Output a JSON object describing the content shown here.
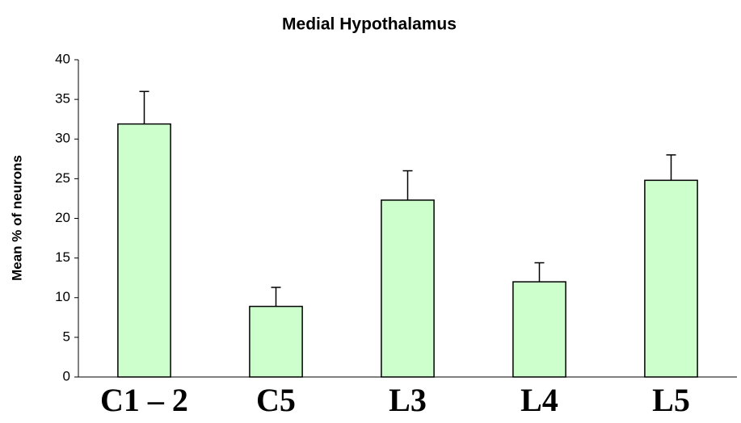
{
  "chart_data": {
    "type": "bar",
    "title": "Medial Hypothalamus",
    "y_label": "Mean % of neurons",
    "categories": [
      "C1 – 2",
      "C5",
      "L3",
      "L4",
      "L5"
    ],
    "values": [
      31.9,
      8.9,
      22.3,
      12.0,
      24.8
    ],
    "errors": [
      4.1,
      2.4,
      3.7,
      2.4,
      3.2
    ],
    "color": "#ccffcc",
    "ylim": [
      0,
      40
    ],
    "yticks": [
      0,
      5,
      10,
      15,
      20,
      25,
      30,
      35,
      40
    ],
    "grid": false
  }
}
